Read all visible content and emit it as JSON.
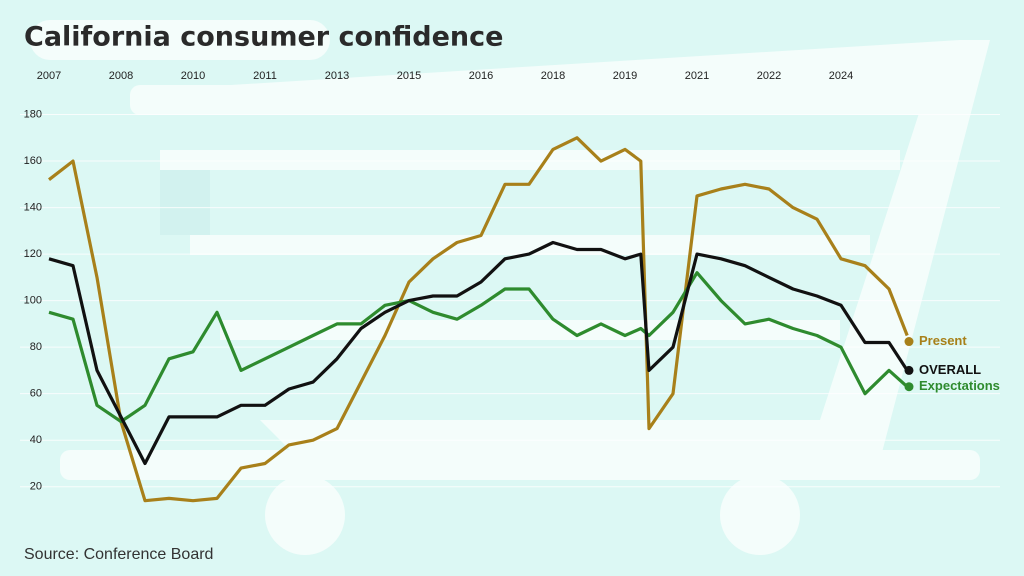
{
  "chart_data": {
    "type": "line",
    "title": "California consumer confidence",
    "source": "Source: Conference Board",
    "x": [
      2007,
      2007.5,
      2008,
      2008.5,
      2009,
      2009.5,
      2010,
      2010.5,
      2011,
      2011.5,
      2012,
      2012.5,
      2013,
      2013.5,
      2014,
      2014.5,
      2015,
      2015.5,
      2016,
      2016.5,
      2017,
      2017.5,
      2018,
      2018.5,
      2019,
      2019.33,
      2019.5,
      2020,
      2020.5,
      2021,
      2021.5,
      2022,
      2022.5,
      2023,
      2023.5,
      2024,
      2024.5,
      2024.88
    ],
    "series": [
      {
        "name": "Present",
        "color": "#a8801a",
        "values": [
          152,
          160,
          110,
          48,
          14,
          15,
          14,
          15,
          28,
          30,
          38,
          40,
          45,
          65,
          85,
          108,
          118,
          125,
          128,
          150,
          150,
          165,
          170,
          160,
          165,
          160,
          45,
          60,
          145,
          148,
          150,
          148,
          140,
          135,
          118,
          115,
          105,
          85
        ]
      },
      {
        "name": "OVERALL",
        "color": "#111111",
        "values": [
          118,
          115,
          70,
          50,
          30,
          50,
          50,
          50,
          55,
          55,
          62,
          65,
          75,
          88,
          95,
          100,
          102,
          102,
          108,
          118,
          120,
          125,
          122,
          122,
          118,
          120,
          70,
          80,
          120,
          118,
          115,
          110,
          105,
          102,
          98,
          82,
          82,
          70
        ]
      },
      {
        "name": "Expectations",
        "color": "#2e8b2e",
        "values": [
          95,
          92,
          55,
          48,
          55,
          75,
          78,
          95,
          70,
          75,
          80,
          85,
          90,
          90,
          98,
          100,
          95,
          92,
          98,
          105,
          105,
          92,
          85,
          90,
          85,
          88,
          85,
          95,
          112,
          100,
          90,
          92,
          88,
          85,
          80,
          60,
          70,
          63
        ]
      }
    ],
    "xlim": [
      2007,
      2025
    ],
    "xticks": [
      2007,
      {
        "value": 2008.5,
        "label": "2008"
      },
      2010,
      {
        "value": 2011.5,
        "label": "2011"
      },
      2013,
      {
        "value": 2014.5,
        "label": "2015"
      },
      2016,
      {
        "value": 2017.5,
        "label": "2018"
      },
      2019,
      {
        "value": 2020.5,
        "label": "2021"
      },
      2022,
      {
        "value": 2023.5,
        "label": "2024"
      }
    ],
    "ylim": [
      10,
      200
    ],
    "yticks": [
      20,
      40,
      60,
      80,
      100,
      120,
      140,
      160,
      180
    ],
    "grid": true
  }
}
